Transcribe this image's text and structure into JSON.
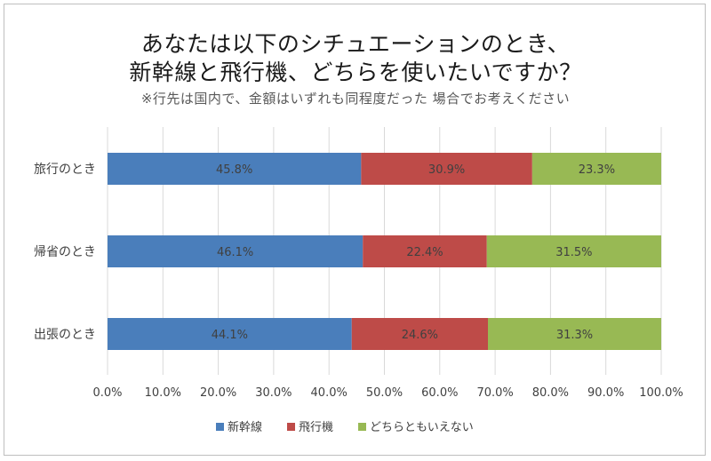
{
  "chart_data": {
    "type": "bar",
    "orientation": "horizontal",
    "stacked": "100%",
    "title_line1": "あなたは以下のシチュエーションのとき、",
    "title_line2": "新幹線と飛行機、どちらを使いたいですか？",
    "subtitle": "※行先は国内で、金額はいずれも同程度だった 場合でお考えください",
    "categories": [
      "旅行のとき",
      "帰省のとき",
      "出張のとき"
    ],
    "series": [
      {
        "name": "新幹線",
        "color": "#4a7ebb",
        "values": [
          45.8,
          46.1,
          44.1
        ],
        "labels": [
          "45.8%",
          "46.1%",
          "44.1%"
        ]
      },
      {
        "name": "飛行機",
        "color": "#be4b48",
        "values": [
          30.9,
          22.4,
          24.6
        ],
        "labels": [
          "30.9%",
          "22.4%",
          "24.6%"
        ]
      },
      {
        "name": "どちらともいえない",
        "color": "#98b954",
        "values": [
          23.3,
          31.5,
          31.3
        ],
        "labels": [
          "23.3%",
          "31.5%",
          "31.3%"
        ]
      }
    ],
    "xlim": [
      0,
      100
    ],
    "xticks": [
      "0.0%",
      "10.0%",
      "20.0%",
      "30.0%",
      "40.0%",
      "50.0%",
      "60.0%",
      "70.0%",
      "80.0%",
      "90.0%",
      "100.0%"
    ],
    "grid": true,
    "legend": "bottom"
  }
}
